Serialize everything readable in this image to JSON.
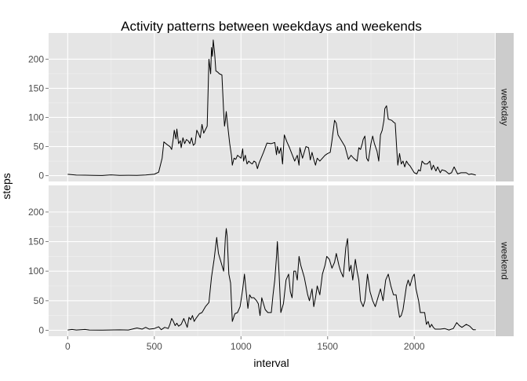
{
  "chart_data": {
    "type": "line",
    "title": "Activity patterns between weekdays and weekends",
    "xlabel": "interval",
    "ylabel": "steps",
    "xlim": [
      -110,
      2465
    ],
    "ylim": [
      -10,
      245
    ],
    "x_ticks": [
      0,
      500,
      1000,
      1500,
      2000
    ],
    "y_ticks": [
      0,
      50,
      100,
      150,
      200
    ],
    "grid": true,
    "legend": "none",
    "panel_background": "#e5e5e5",
    "strip_background": "#cccccc",
    "grid_color": "#ffffff",
    "line_color": "#000000",
    "panels": [
      {
        "name": "weekday",
        "points": [
          [
            0,
            2.3
          ],
          [
            50,
            1.0
          ],
          [
            100,
            0.8
          ],
          [
            150,
            0.5
          ],
          [
            200,
            0.3
          ],
          [
            250,
            1.3
          ],
          [
            300,
            0.4
          ],
          [
            350,
            0.6
          ],
          [
            400,
            0.5
          ],
          [
            450,
            1.2
          ],
          [
            500,
            2.5
          ],
          [
            525,
            6
          ],
          [
            545,
            30
          ],
          [
            555,
            58
          ],
          [
            575,
            53
          ],
          [
            590,
            50
          ],
          [
            600,
            45
          ],
          [
            610,
            65
          ],
          [
            615,
            78
          ],
          [
            625,
            63
          ],
          [
            630,
            80
          ],
          [
            640,
            55
          ],
          [
            650,
            60
          ],
          [
            655,
            48
          ],
          [
            665,
            65
          ],
          [
            675,
            55
          ],
          [
            685,
            62
          ],
          [
            695,
            60
          ],
          [
            705,
            55
          ],
          [
            715,
            65
          ],
          [
            725,
            52
          ],
          [
            735,
            55
          ],
          [
            745,
            78
          ],
          [
            755,
            72
          ],
          [
            765,
            65
          ],
          [
            775,
            88
          ],
          [
            785,
            73
          ],
          [
            805,
            85
          ],
          [
            815,
            200
          ],
          [
            825,
            175
          ],
          [
            830,
            220
          ],
          [
            835,
            205
          ],
          [
            840,
            233
          ],
          [
            848,
            210
          ],
          [
            855,
            180
          ],
          [
            865,
            178
          ],
          [
            875,
            175
          ],
          [
            890,
            173
          ],
          [
            900,
            110
          ],
          [
            905,
            85
          ],
          [
            910,
            95
          ],
          [
            915,
            110
          ],
          [
            920,
            95
          ],
          [
            935,
            55
          ],
          [
            945,
            35
          ],
          [
            950,
            18
          ],
          [
            960,
            30
          ],
          [
            970,
            28
          ],
          [
            980,
            35
          ],
          [
            1000,
            30
          ],
          [
            1010,
            46
          ],
          [
            1015,
            25
          ],
          [
            1025,
            35
          ],
          [
            1035,
            20
          ],
          [
            1045,
            25
          ],
          [
            1055,
            22
          ],
          [
            1065,
            20
          ],
          [
            1075,
            25
          ],
          [
            1085,
            23
          ],
          [
            1095,
            12
          ],
          [
            1105,
            22
          ],
          [
            1130,
            40
          ],
          [
            1150,
            56
          ],
          [
            1175,
            55
          ],
          [
            1195,
            57
          ],
          [
            1205,
            36
          ],
          [
            1210,
            50
          ],
          [
            1220,
            38
          ],
          [
            1230,
            48
          ],
          [
            1240,
            20
          ],
          [
            1250,
            70
          ],
          [
            1265,
            58
          ],
          [
            1280,
            48
          ],
          [
            1310,
            25
          ],
          [
            1325,
            35
          ],
          [
            1335,
            18
          ],
          [
            1340,
            48
          ],
          [
            1355,
            30
          ],
          [
            1375,
            50
          ],
          [
            1390,
            48
          ],
          [
            1400,
            27
          ],
          [
            1410,
            40
          ],
          [
            1420,
            28
          ],
          [
            1430,
            18
          ],
          [
            1440,
            30
          ],
          [
            1455,
            25
          ],
          [
            1485,
            35
          ],
          [
            1500,
            38
          ],
          [
            1515,
            40
          ],
          [
            1525,
            60
          ],
          [
            1540,
            95
          ],
          [
            1550,
            90
          ],
          [
            1560,
            70
          ],
          [
            1580,
            60
          ],
          [
            1600,
            50
          ],
          [
            1620,
            28
          ],
          [
            1635,
            35
          ],
          [
            1650,
            30
          ],
          [
            1670,
            25
          ],
          [
            1680,
            48
          ],
          [
            1690,
            45
          ],
          [
            1700,
            55
          ],
          [
            1705,
            62
          ],
          [
            1715,
            68
          ],
          [
            1725,
            30
          ],
          [
            1735,
            25
          ],
          [
            1745,
            45
          ],
          [
            1750,
            55
          ],
          [
            1760,
            68
          ],
          [
            1770,
            55
          ],
          [
            1785,
            42
          ],
          [
            1795,
            25
          ],
          [
            1805,
            70
          ],
          [
            1815,
            78
          ],
          [
            1825,
            95
          ],
          [
            1830,
            115
          ],
          [
            1840,
            120
          ],
          [
            1850,
            97
          ],
          [
            1870,
            95
          ],
          [
            1880,
            92
          ],
          [
            1890,
            90
          ],
          [
            1900,
            40
          ],
          [
            1905,
            18
          ],
          [
            1915,
            38
          ],
          [
            1925,
            20
          ],
          [
            1935,
            25
          ],
          [
            1945,
            15
          ],
          [
            1955,
            25
          ],
          [
            1965,
            20
          ],
          [
            1975,
            17
          ],
          [
            2000,
            5
          ],
          [
            2015,
            3
          ],
          [
            2025,
            10
          ],
          [
            2035,
            8
          ],
          [
            2045,
            25
          ],
          [
            2060,
            20
          ],
          [
            2075,
            20
          ],
          [
            2090,
            25
          ],
          [
            2100,
            10
          ],
          [
            2110,
            18
          ],
          [
            2125,
            8
          ],
          [
            2135,
            15
          ],
          [
            2150,
            5
          ],
          [
            2160,
            10
          ],
          [
            2180,
            8
          ],
          [
            2200,
            3
          ],
          [
            2215,
            5
          ],
          [
            2230,
            15
          ],
          [
            2250,
            3
          ],
          [
            2270,
            5
          ],
          [
            2300,
            5
          ],
          [
            2315,
            2
          ],
          [
            2330,
            3
          ],
          [
            2355,
            1
          ]
        ]
      },
      {
        "name": "weekend",
        "points": [
          [
            0,
            0.5
          ],
          [
            25,
            1.5
          ],
          [
            50,
            0.5
          ],
          [
            100,
            1.5
          ],
          [
            125,
            0.5
          ],
          [
            200,
            0.3
          ],
          [
            300,
            0.8
          ],
          [
            350,
            0.5
          ],
          [
            400,
            4
          ],
          [
            430,
            2
          ],
          [
            450,
            5
          ],
          [
            470,
            2
          ],
          [
            500,
            3
          ],
          [
            525,
            6
          ],
          [
            540,
            1
          ],
          [
            560,
            5
          ],
          [
            580,
            3
          ],
          [
            590,
            10
          ],
          [
            600,
            20
          ],
          [
            610,
            15
          ],
          [
            620,
            8
          ],
          [
            630,
            12
          ],
          [
            640,
            7
          ],
          [
            655,
            10
          ],
          [
            670,
            20
          ],
          [
            690,
            5
          ],
          [
            700,
            22
          ],
          [
            710,
            18
          ],
          [
            720,
            25
          ],
          [
            730,
            15
          ],
          [
            740,
            20
          ],
          [
            760,
            28
          ],
          [
            775,
            30
          ],
          [
            795,
            40
          ],
          [
            815,
            47
          ],
          [
            830,
            90
          ],
          [
            845,
            120
          ],
          [
            860,
            157
          ],
          [
            870,
            130
          ],
          [
            885,
            115
          ],
          [
            900,
            100
          ],
          [
            910,
            157
          ],
          [
            915,
            172
          ],
          [
            920,
            160
          ],
          [
            930,
            95
          ],
          [
            940,
            80
          ],
          [
            950,
            15
          ],
          [
            965,
            28
          ],
          [
            980,
            30
          ],
          [
            995,
            40
          ],
          [
            1010,
            70
          ],
          [
            1020,
            95
          ],
          [
            1030,
            65
          ],
          [
            1040,
            37
          ],
          [
            1050,
            60
          ],
          [
            1060,
            55
          ],
          [
            1075,
            55
          ],
          [
            1090,
            50
          ],
          [
            1100,
            45
          ],
          [
            1110,
            25
          ],
          [
            1120,
            55
          ],
          [
            1130,
            45
          ],
          [
            1140,
            35
          ],
          [
            1155,
            30
          ],
          [
            1175,
            30
          ],
          [
            1185,
            60
          ],
          [
            1195,
            85
          ],
          [
            1205,
            125
          ],
          [
            1210,
            150
          ],
          [
            1220,
            95
          ],
          [
            1230,
            30
          ],
          [
            1245,
            45
          ],
          [
            1260,
            85
          ],
          [
            1275,
            95
          ],
          [
            1285,
            65
          ],
          [
            1295,
            55
          ],
          [
            1305,
            100
          ],
          [
            1315,
            100
          ],
          [
            1325,
            85
          ],
          [
            1335,
            125
          ],
          [
            1345,
            110
          ],
          [
            1355,
            100
          ],
          [
            1365,
            90
          ],
          [
            1375,
            75
          ],
          [
            1385,
            60
          ],
          [
            1395,
            50
          ],
          [
            1410,
            70
          ],
          [
            1420,
            40
          ],
          [
            1430,
            55
          ],
          [
            1440,
            75
          ],
          [
            1455,
            60
          ],
          [
            1470,
            95
          ],
          [
            1485,
            110
          ],
          [
            1495,
            125
          ],
          [
            1510,
            120
          ],
          [
            1525,
            105
          ],
          [
            1540,
            115
          ],
          [
            1550,
            130
          ],
          [
            1565,
            110
          ],
          [
            1575,
            100
          ],
          [
            1590,
            90
          ],
          [
            1605,
            140
          ],
          [
            1615,
            155
          ],
          [
            1625,
            100
          ],
          [
            1635,
            110
          ],
          [
            1645,
            85
          ],
          [
            1660,
            120
          ],
          [
            1670,
            100
          ],
          [
            1680,
            85
          ],
          [
            1690,
            50
          ],
          [
            1705,
            40
          ],
          [
            1715,
            50
          ],
          [
            1730,
            95
          ],
          [
            1745,
            65
          ],
          [
            1760,
            50
          ],
          [
            1775,
            40
          ],
          [
            1790,
            55
          ],
          [
            1805,
            70
          ],
          [
            1820,
            50
          ],
          [
            1835,
            85
          ],
          [
            1850,
            95
          ],
          [
            1865,
            75
          ],
          [
            1880,
            60
          ],
          [
            1895,
            60
          ],
          [
            1905,
            40
          ],
          [
            1915,
            22
          ],
          [
            1925,
            25
          ],
          [
            1935,
            35
          ],
          [
            1945,
            55
          ],
          [
            1955,
            75
          ],
          [
            1965,
            85
          ],
          [
            1975,
            75
          ],
          [
            1990,
            90
          ],
          [
            2000,
            95
          ],
          [
            2010,
            70
          ],
          [
            2025,
            50
          ],
          [
            2035,
            30
          ],
          [
            2050,
            30
          ],
          [
            2060,
            30
          ],
          [
            2070,
            10
          ],
          [
            2080,
            15
          ],
          [
            2090,
            5
          ],
          [
            2100,
            10
          ],
          [
            2110,
            5
          ],
          [
            2120,
            2
          ],
          [
            2150,
            2
          ],
          [
            2175,
            3
          ],
          [
            2200,
            0.5
          ],
          [
            2225,
            3
          ],
          [
            2245,
            13
          ],
          [
            2260,
            8
          ],
          [
            2275,
            5
          ],
          [
            2300,
            10
          ],
          [
            2320,
            7
          ],
          [
            2340,
            1
          ],
          [
            2355,
            1
          ]
        ]
      }
    ]
  }
}
